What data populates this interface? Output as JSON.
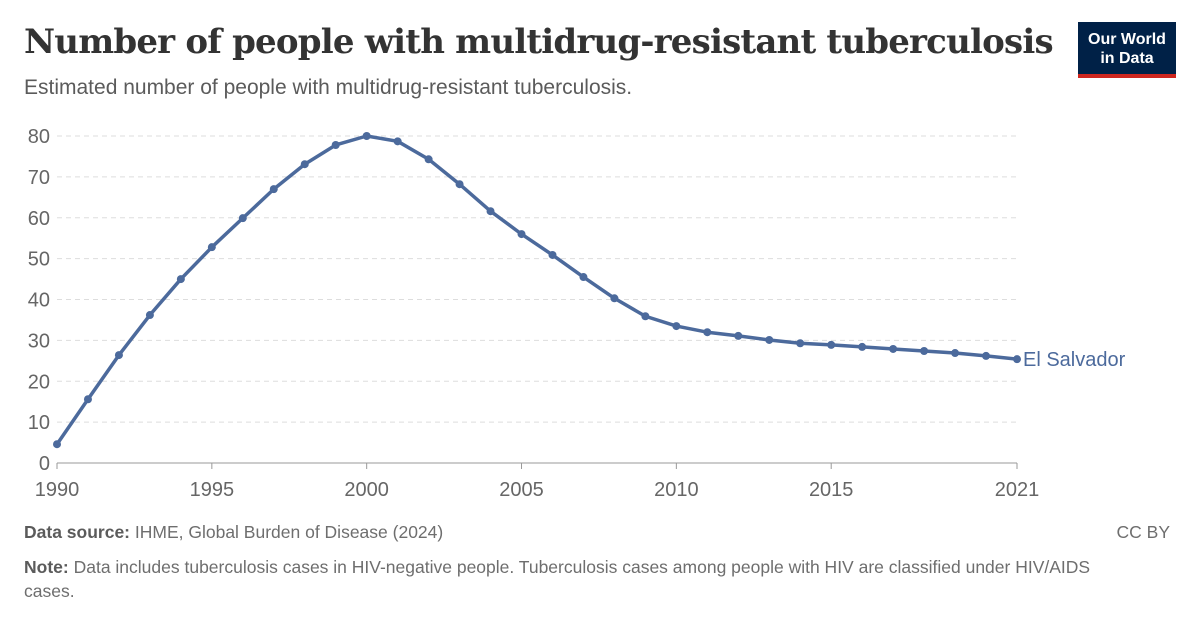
{
  "header": {
    "title": "Number of people with multidrug-resistant tuberculosis",
    "subtitle": "Estimated number of people with multidrug-resistant tuberculosis.",
    "logo_line1": "Our World",
    "logo_line2": "in Data"
  },
  "footer": {
    "source_label": "Data source:",
    "source": " IHME, Global Burden of Disease (2024)",
    "note_label": "Note:",
    "note": " Data includes tuberculosis cases in HIV-negative people. Tuberculosis cases among people with HIV are classified under HIV/AIDS cases.",
    "license": "CC BY"
  },
  "chart_data": {
    "type": "line",
    "title": "Number of people with multidrug-resistant tuberculosis",
    "xlim": [
      1990,
      2021
    ],
    "ylim": [
      0,
      80
    ],
    "yticks": [
      0,
      10,
      20,
      30,
      40,
      50,
      60,
      70,
      80
    ],
    "xticks": [
      1990,
      1995,
      2000,
      2005,
      2010,
      2015,
      2021
    ],
    "grid": "horizontal dashed",
    "colors": {
      "line": "#4c6a9c",
      "grid": "#dddddd",
      "text": "#666666"
    },
    "x": [
      1990,
      1991,
      1992,
      1993,
      1994,
      1995,
      1996,
      1997,
      1998,
      1999,
      2000,
      2001,
      2002,
      2003,
      2004,
      2005,
      2006,
      2007,
      2008,
      2009,
      2010,
      2011,
      2012,
      2013,
      2014,
      2015,
      2016,
      2017,
      2018,
      2019,
      2020,
      2021
    ],
    "series": [
      {
        "name": "El Salvador",
        "values": [
          4.6,
          15.6,
          26.4,
          36.2,
          45.0,
          52.8,
          59.9,
          67.0,
          73.1,
          77.8,
          80.0,
          78.7,
          74.3,
          68.2,
          61.6,
          56.0,
          50.9,
          45.5,
          40.3,
          35.9,
          33.5,
          32.0,
          31.1,
          30.1,
          29.3,
          28.9,
          28.4,
          27.9,
          27.4,
          26.9,
          26.2,
          25.4
        ]
      }
    ]
  }
}
